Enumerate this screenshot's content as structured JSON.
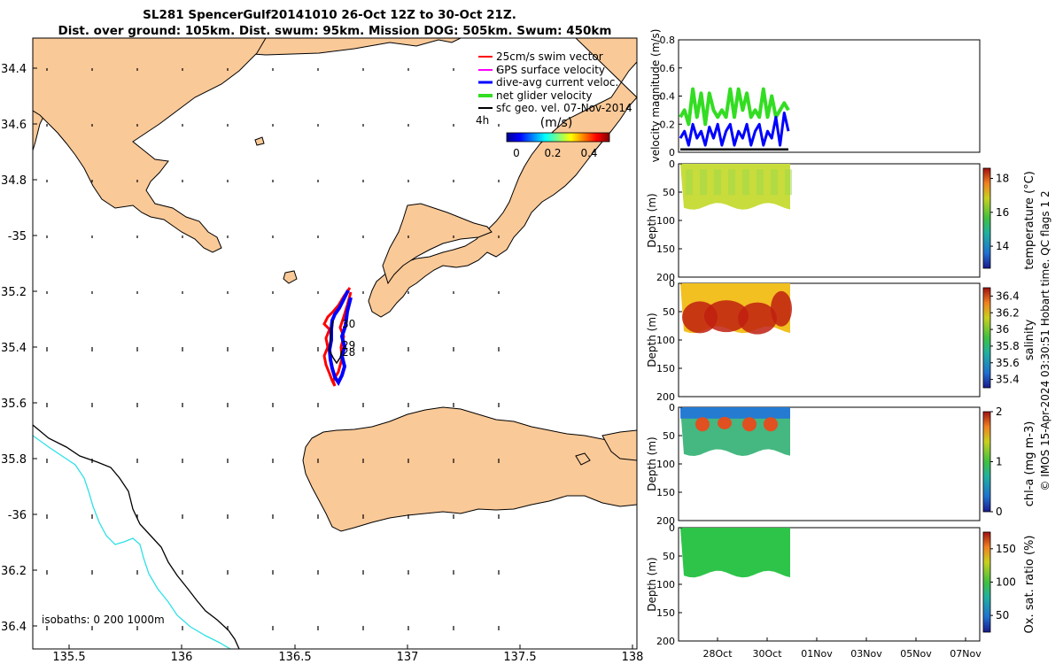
{
  "title": {
    "line1": "SL281 SpencerGulf20141010 26-Oct 12Z to 30-Oct 21Z.",
    "line2": "Dist. over ground: 105km. Dist. swum: 95km. Mission DOG: 505km. Swum: 450km"
  },
  "colors": {
    "land": "#fac998",
    "coast": "#000000",
    "isobath_200": "#000000",
    "isobath_1000": "#2ee0e6",
    "swim_vector": "#ff0000",
    "gps_velocity": "#ff00ff",
    "dive_avg_current": "#0000ff",
    "net_glider_velocity": "#33dd22",
    "sfc_geo_vel": "#000000"
  },
  "map": {
    "lon_ticks": [
      "135.5",
      "136",
      "136.5",
      "137",
      "137.5",
      "138"
    ],
    "lat_ticks": [
      "34.4",
      "34.6",
      "34.8",
      "-35",
      "35.2",
      "35.4",
      "35.6",
      "35.8",
      "-36",
      "36.2",
      "36.4"
    ],
    "legend": [
      "25cm/s swim vector",
      "GPS surface velocity",
      "dive-avg current veloc.",
      "net glider velocity",
      "sfc geo. vel. 07-Nov-2014"
    ],
    "time_label": "4h",
    "colorbar_label": "(m/s)",
    "colorbar_ticks": [
      "0",
      "0.2",
      "0.4"
    ],
    "day_labels": [
      "30",
      "29",
      "28"
    ],
    "isobath_note": "isobaths: 0   200  1000m"
  },
  "chart_data": [
    {
      "type": "line",
      "ylabel": "velocity magnitude (m/s)",
      "ylim": [
        0,
        0.8
      ],
      "yticks": [
        "0",
        "0.2",
        "0.4",
        "0.6",
        "0.8"
      ],
      "x_ticks": [
        "28Oct",
        "30Oct",
        "01Nov",
        "03Nov",
        "05Nov",
        "07Nov"
      ],
      "series": [
        {
          "color": "#33dd22",
          "values": [
            0.25,
            0.3,
            0.2,
            0.45,
            0.25,
            0.42,
            0.2,
            0.42,
            0.3,
            0.25,
            0.3,
            0.25,
            0.45,
            0.25,
            0.45,
            0.3,
            0.42,
            0.25,
            0.3,
            0.25,
            0.45,
            0.25,
            0.4,
            0.25,
            0.3,
            0.35,
            0.3
          ]
        },
        {
          "color": "#0000ff",
          "values": [
            0.1,
            0.15,
            0.05,
            0.2,
            0.1,
            0.15,
            0.05,
            0.18,
            0.1,
            0.2,
            0.05,
            0.15,
            0.2,
            0.05,
            0.15,
            0.1,
            0.2,
            0.05,
            0.15,
            0.2,
            0.05,
            0.15,
            0.1,
            0.25,
            0.05,
            0.28,
            0.15
          ]
        },
        {
          "color": "#000000",
          "values": [
            0.02,
            0.02,
            0.02,
            0.02,
            0.02,
            0.02,
            0.02,
            0.02,
            0.02,
            0.02,
            0.02,
            0.02,
            0.02,
            0.02,
            0.02,
            0.02,
            0.02,
            0.02,
            0.02,
            0.02,
            0.02,
            0.02,
            0.02,
            0.02,
            0.02,
            0.02,
            0.02
          ]
        }
      ]
    },
    {
      "type": "heatmap",
      "ylabel": "Depth (m)",
      "ylim": [
        0,
        200
      ],
      "yticks": [
        "0",
        "50",
        "100",
        "150",
        "200"
      ],
      "colorbar_label": "temperature (°C)",
      "colorbar_ticks": [
        "14",
        "16",
        "18"
      ],
      "clim": [
        12.7,
        18.6
      ]
    },
    {
      "type": "heatmap",
      "ylabel": "Depth (m)",
      "ylim": [
        0,
        200
      ],
      "yticks": [
        "0",
        "50",
        "100",
        "150",
        "200"
      ],
      "colorbar_label": "salinity",
      "colorbar_ticks": [
        "35.4",
        "35.6",
        "35.8",
        "36",
        "36.2",
        "36.4"
      ],
      "clim": [
        35.3,
        36.5
      ]
    },
    {
      "type": "heatmap",
      "ylabel": "Depth (m)",
      "ylim": [
        0,
        200
      ],
      "yticks": [
        "0",
        "50",
        "100",
        "150",
        "200"
      ],
      "colorbar_label": "chl-a (mg m-3)",
      "colorbar_ticks": [
        "0",
        "1",
        "2"
      ],
      "clim": [
        0,
        2
      ]
    },
    {
      "type": "heatmap",
      "ylabel": "Depth (m)",
      "ylim": [
        0,
        200
      ],
      "yticks": [
        "0",
        "50",
        "100",
        "150",
        "200"
      ],
      "colorbar_label": "Ox. sat. ratio (%)",
      "colorbar_ticks": [
        "50",
        "100",
        "150"
      ],
      "clim": [
        25,
        175
      ]
    }
  ],
  "footer": "© IMOS 15-Apr-2024 03:30:51 Hobart time. QC flags 1  2"
}
